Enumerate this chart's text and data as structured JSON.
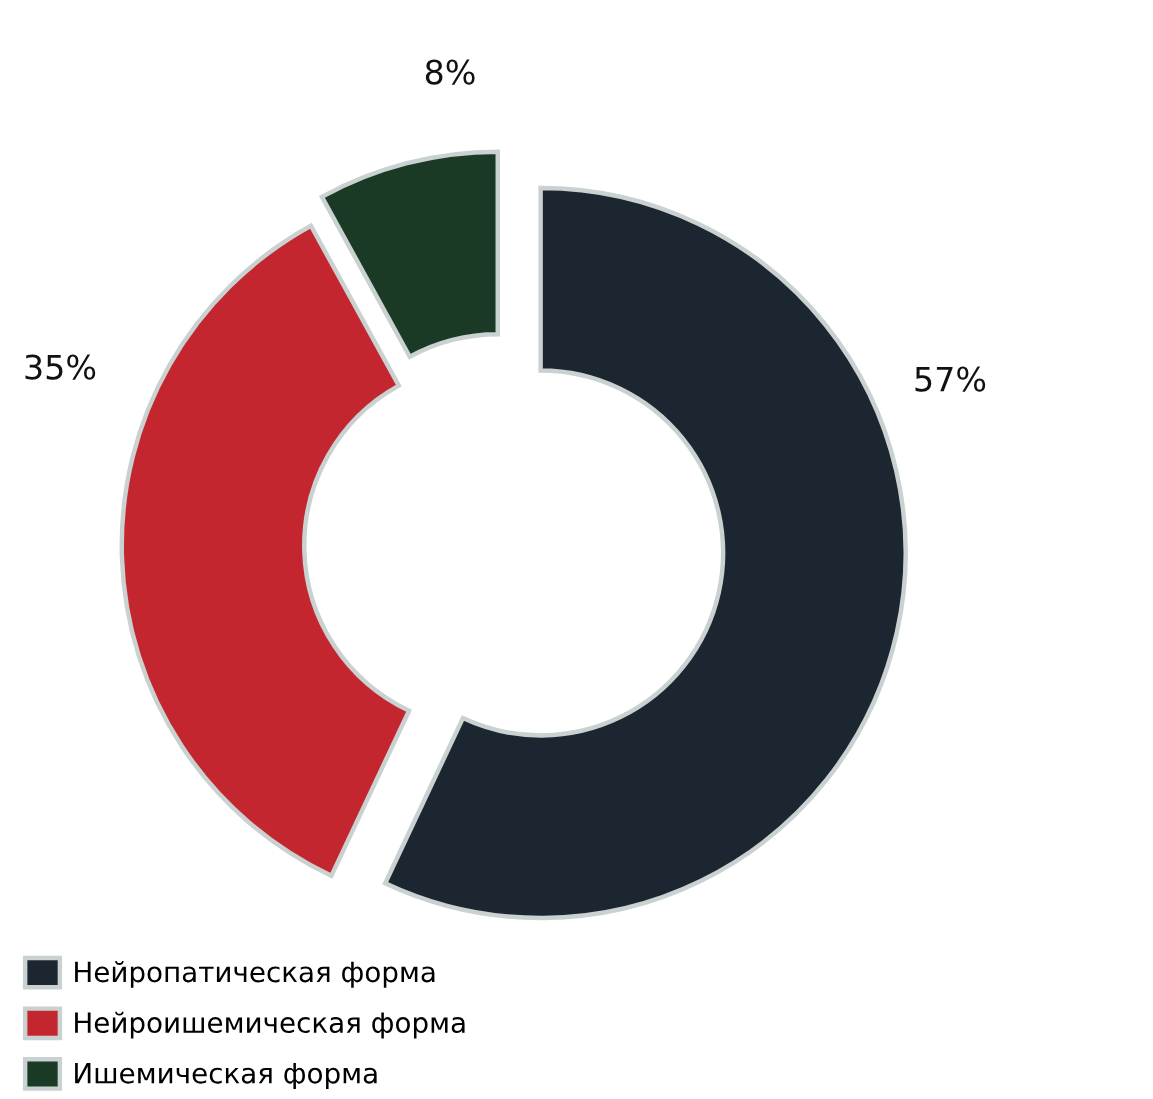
{
  "chart_data": {
    "type": "donut",
    "categories": [
      "Нейропатическая форма",
      "Нейроишемическая форма",
      "Ишемическая форма"
    ],
    "values": [
      57,
      35,
      8
    ],
    "colors": [
      "#1c2630",
      "#c4262f",
      "#1a3a26"
    ],
    "value_labels": [
      "57%",
      "35%",
      "8%"
    ],
    "legend": "bottom left"
  }
}
